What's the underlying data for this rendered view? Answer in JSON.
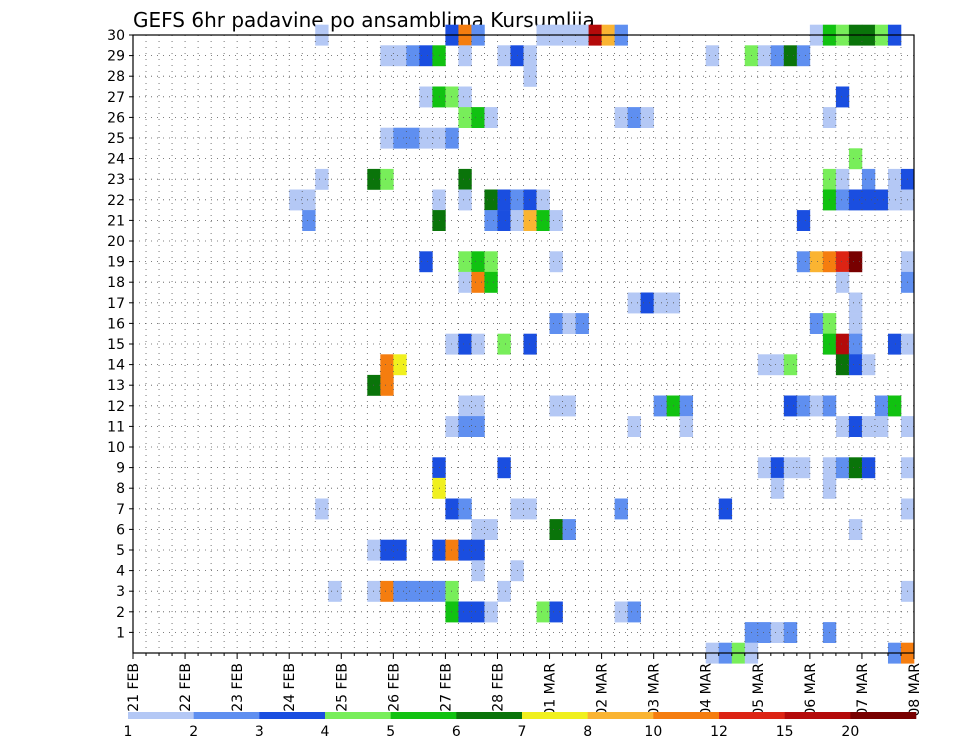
{
  "chart_data": {
    "type": "heatmap",
    "title": "GEFS 6hr padavine po ansamblima Kursumlija",
    "xlabel": "",
    "ylabel": "",
    "x_tick_labels": [
      "21 FEB",
      "22 FEB",
      "23 FEB",
      "24 FEB",
      "25 FEB",
      "26 FEB",
      "27 FEB",
      "28 FEB",
      "01 MAR",
      "02 MAR",
      "03 MAR",
      "04 MAR",
      "05 MAR",
      "06 MAR",
      "07 MAR",
      "08 MAR"
    ],
    "y_tick_labels": [
      "1",
      "2",
      "3",
      "4",
      "5",
      "6",
      "7",
      "8",
      "9",
      "10",
      "11",
      "12",
      "13",
      "14",
      "15",
      "16",
      "17",
      "18",
      "19",
      "20",
      "21",
      "22",
      "23",
      "24",
      "25",
      "26",
      "27",
      "28",
      "29",
      "30"
    ],
    "members": 30,
    "time_steps": 60,
    "steps_per_day": 4,
    "legend_thresholds": [
      "1",
      "2",
      "3",
      "4",
      "5",
      "6",
      "7",
      "8",
      "10",
      "12",
      "15",
      "20"
    ],
    "legend_colors": [
      "#b4c8f5",
      "#5f8ff0",
      "#1a4ee0",
      "#78ee5a",
      "#11c211",
      "#0a740a",
      "#f0f01e",
      "#fab432",
      "#f57d0f",
      "#dc2414",
      "#b40a0a",
      "#780000"
    ],
    "values": [
      {
        "member": 30,
        "cells": [
          [
            14,
            1
          ],
          [
            24,
            3
          ],
          [
            25,
            10
          ],
          [
            26,
            2
          ],
          [
            31,
            1
          ],
          [
            32,
            1
          ],
          [
            33,
            1
          ],
          [
            34,
            1
          ],
          [
            35,
            15
          ],
          [
            36,
            8
          ],
          [
            37,
            2
          ],
          [
            52,
            1
          ],
          [
            53,
            5
          ],
          [
            54,
            4
          ],
          [
            55,
            6
          ],
          [
            56,
            6
          ],
          [
            57,
            4
          ],
          [
            58,
            3
          ]
        ]
      },
      {
        "member": 29,
        "cells": [
          [
            19,
            1
          ],
          [
            20,
            1
          ],
          [
            21,
            2
          ],
          [
            22,
            3
          ],
          [
            23,
            5
          ],
          [
            25,
            1
          ],
          [
            28,
            1
          ],
          [
            29,
            3
          ],
          [
            30,
            1
          ],
          [
            44,
            1
          ],
          [
            47,
            4
          ],
          [
            48,
            1
          ],
          [
            49,
            2
          ],
          [
            50,
            6
          ],
          [
            51,
            2
          ]
        ]
      },
      {
        "member": 28,
        "cells": [
          [
            30,
            1
          ]
        ]
      },
      {
        "member": 27,
        "cells": [
          [
            22,
            1
          ],
          [
            23,
            5
          ],
          [
            24,
            4
          ],
          [
            25,
            1
          ],
          [
            54,
            3
          ]
        ]
      },
      {
        "member": 26,
        "cells": [
          [
            25,
            4
          ],
          [
            26,
            5
          ],
          [
            27,
            1
          ],
          [
            37,
            1
          ],
          [
            38,
            2
          ],
          [
            39,
            1
          ],
          [
            53,
            1
          ]
        ]
      },
      {
        "member": 25,
        "cells": [
          [
            19,
            1
          ],
          [
            20,
            2
          ],
          [
            21,
            2
          ],
          [
            22,
            1
          ],
          [
            23,
            1
          ],
          [
            24,
            2
          ]
        ]
      },
      {
        "member": 24,
        "cells": [
          [
            55,
            4
          ]
        ]
      },
      {
        "member": 23,
        "cells": [
          [
            14,
            1
          ],
          [
            18,
            6
          ],
          [
            19,
            4
          ],
          [
            25,
            6
          ],
          [
            53,
            4
          ],
          [
            54,
            1
          ],
          [
            56,
            2
          ],
          [
            58,
            1
          ],
          [
            59,
            3
          ]
        ]
      },
      {
        "member": 22,
        "cells": [
          [
            12,
            1
          ],
          [
            13,
            1
          ],
          [
            23,
            1
          ],
          [
            25,
            1
          ],
          [
            27,
            6
          ],
          [
            28,
            3
          ],
          [
            29,
            2
          ],
          [
            30,
            3
          ],
          [
            31,
            1
          ],
          [
            53,
            5
          ],
          [
            54,
            2
          ],
          [
            55,
            3
          ],
          [
            56,
            3
          ],
          [
            57,
            3
          ],
          [
            58,
            1
          ],
          [
            59,
            1
          ]
        ]
      },
      {
        "member": 21,
        "cells": [
          [
            13,
            2
          ],
          [
            23,
            6
          ],
          [
            27,
            2
          ],
          [
            28,
            3
          ],
          [
            29,
            1
          ],
          [
            30,
            8
          ],
          [
            31,
            5
          ],
          [
            32,
            1
          ],
          [
            51,
            3
          ]
        ]
      },
      {
        "member": 19,
        "cells": [
          [
            22,
            3
          ],
          [
            25,
            4
          ],
          [
            26,
            5
          ],
          [
            27,
            4
          ],
          [
            32,
            1
          ],
          [
            51,
            2
          ],
          [
            52,
            8
          ],
          [
            53,
            10
          ],
          [
            54,
            12
          ],
          [
            55,
            20
          ],
          [
            59,
            1
          ]
        ]
      },
      {
        "member": 18,
        "cells": [
          [
            25,
            1
          ],
          [
            26,
            10
          ],
          [
            27,
            5
          ],
          [
            54,
            1
          ],
          [
            59,
            2
          ]
        ]
      },
      {
        "member": 17,
        "cells": [
          [
            38,
            1
          ],
          [
            39,
            3
          ],
          [
            40,
            1
          ],
          [
            41,
            1
          ],
          [
            55,
            1
          ]
        ]
      },
      {
        "member": 16,
        "cells": [
          [
            32,
            2
          ],
          [
            33,
            1
          ],
          [
            34,
            2
          ],
          [
            52,
            2
          ],
          [
            53,
            4
          ],
          [
            55,
            1
          ]
        ]
      },
      {
        "member": 15,
        "cells": [
          [
            24,
            1
          ],
          [
            25,
            3
          ],
          [
            26,
            1
          ],
          [
            28,
            4
          ],
          [
            30,
            3
          ],
          [
            53,
            5
          ],
          [
            54,
            15
          ],
          [
            55,
            2
          ],
          [
            58,
            3
          ],
          [
            59,
            1
          ]
        ]
      },
      {
        "member": 14,
        "cells": [
          [
            19,
            10
          ],
          [
            20,
            7
          ],
          [
            48,
            1
          ],
          [
            49,
            1
          ],
          [
            50,
            4
          ],
          [
            54,
            6
          ],
          [
            55,
            3
          ],
          [
            56,
            1
          ]
        ]
      },
      {
        "member": 13,
        "cells": [
          [
            18,
            6
          ],
          [
            19,
            10
          ]
        ]
      },
      {
        "member": 12,
        "cells": [
          [
            25,
            1
          ],
          [
            26,
            1
          ],
          [
            32,
            1
          ],
          [
            33,
            1
          ],
          [
            40,
            2
          ],
          [
            41,
            5
          ],
          [
            42,
            2
          ],
          [
            50,
            3
          ],
          [
            51,
            2
          ],
          [
            52,
            1
          ],
          [
            53,
            2
          ],
          [
            57,
            2
          ],
          [
            58,
            5
          ]
        ]
      },
      {
        "member": 11,
        "cells": [
          [
            24,
            1
          ],
          [
            25,
            2
          ],
          [
            26,
            2
          ],
          [
            38,
            1
          ],
          [
            42,
            1
          ],
          [
            54,
            1
          ],
          [
            55,
            3
          ],
          [
            56,
            1
          ],
          [
            57,
            1
          ],
          [
            59,
            1
          ]
        ]
      },
      {
        "member": 9,
        "cells": [
          [
            23,
            3
          ],
          [
            28,
            3
          ],
          [
            48,
            1
          ],
          [
            49,
            3
          ],
          [
            50,
            1
          ],
          [
            51,
            1
          ],
          [
            53,
            1
          ],
          [
            54,
            2
          ],
          [
            55,
            6
          ],
          [
            56,
            3
          ],
          [
            59,
            1
          ]
        ]
      },
      {
        "member": 8,
        "cells": [
          [
            23,
            7
          ],
          [
            49,
            1
          ],
          [
            53,
            1
          ]
        ]
      },
      {
        "member": 7,
        "cells": [
          [
            14,
            1
          ],
          [
            24,
            3
          ],
          [
            25,
            2
          ],
          [
            29,
            1
          ],
          [
            30,
            1
          ],
          [
            37,
            2
          ],
          [
            45,
            3
          ],
          [
            59,
            1
          ]
        ]
      },
      {
        "member": 6,
        "cells": [
          [
            26,
            1
          ],
          [
            27,
            1
          ],
          [
            32,
            6
          ],
          [
            33,
            2
          ],
          [
            55,
            1
          ]
        ]
      },
      {
        "member": 5,
        "cells": [
          [
            18,
            1
          ],
          [
            19,
            3
          ],
          [
            20,
            3
          ],
          [
            23,
            3
          ],
          [
            24,
            10
          ],
          [
            25,
            3
          ],
          [
            26,
            3
          ]
        ]
      },
      {
        "member": 4,
        "cells": [
          [
            26,
            1
          ],
          [
            29,
            1
          ]
        ]
      },
      {
        "member": 3,
        "cells": [
          [
            15,
            1
          ],
          [
            18,
            1
          ],
          [
            19,
            10
          ],
          [
            20,
            2
          ],
          [
            21,
            2
          ],
          [
            22,
            2
          ],
          [
            23,
            2
          ],
          [
            24,
            4
          ],
          [
            28,
            1
          ],
          [
            59,
            1
          ]
        ]
      },
      {
        "member": 2,
        "cells": [
          [
            24,
            5
          ],
          [
            25,
            3
          ],
          [
            26,
            3
          ],
          [
            27,
            1
          ],
          [
            31,
            4
          ],
          [
            32,
            3
          ],
          [
            37,
            1
          ],
          [
            38,
            2
          ]
        ]
      },
      {
        "member": 1,
        "cells": [
          [
            47,
            2
          ],
          [
            48,
            2
          ],
          [
            49,
            1
          ],
          [
            50,
            2
          ],
          [
            53,
            2
          ]
        ]
      },
      {
        "member": 0,
        "cells": [
          [
            44,
            1
          ],
          [
            45,
            2
          ],
          [
            46,
            4
          ],
          [
            47,
            1
          ],
          [
            58,
            2
          ],
          [
            59,
            10
          ]
        ]
      }
    ]
  }
}
